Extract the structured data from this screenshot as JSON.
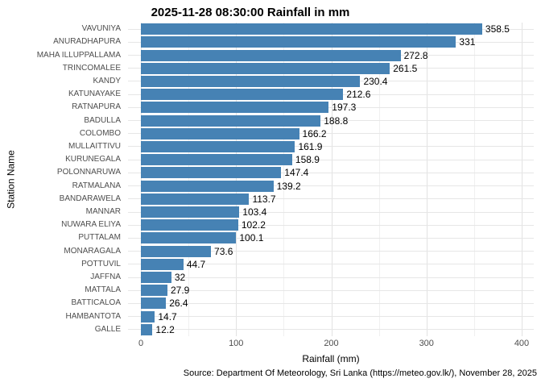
{
  "caption": "Source: Department Of Meteorology, Sri Lanka (https://meteo.gov.lk/), November 28, 2025",
  "colors": {
    "bar": "#4682B4",
    "grid_major": "#e2e2e2",
    "grid_minor": "#f0f0f0",
    "grid_row": "#e6e6e6",
    "axis_text": "#4d4d4d",
    "text": "#000000",
    "background": "#ffffff"
  },
  "chart_data": {
    "type": "bar",
    "orientation": "horizontal",
    "title": "2025-11-28 08:30:00 Rainfall in mm",
    "xlabel": "Rainfall (mm)",
    "ylabel": "Station Name",
    "xlim": [
      0,
      400
    ],
    "x_major_ticks": [
      0,
      100,
      200,
      300,
      400
    ],
    "x_minor_gridlines": [
      50,
      150,
      250,
      350
    ],
    "grid": true,
    "legend": false,
    "categories": [
      "VAVUNIYA",
      "ANURADHAPURA",
      "MAHA ILLUPPALLAMA",
      "TRINCOMALEE",
      "KANDY",
      "KATUNAYAKE",
      "RATNAPURA",
      "BADULLA",
      "COLOMBO",
      "MULLAITTIVU",
      "KURUNEGALA",
      "POLONNARUWA",
      "RATMALANA",
      "BANDARAWELA",
      "MANNAR",
      "NUWARA ELIYA",
      "PUTTALAM",
      "MONARAGALA",
      "POTTUVIL",
      "JAFFNA",
      "MATTALA",
      "BATTICALOA",
      "HAMBANTOTA",
      "GALLE"
    ],
    "values": [
      358.5,
      331,
      272.8,
      261.5,
      230.4,
      212.6,
      197.3,
      188.8,
      166.2,
      161.9,
      158.9,
      147.4,
      139.2,
      113.7,
      103.4,
      102.2,
      100.1,
      73.6,
      44.7,
      32,
      27.9,
      26.4,
      14.7,
      12.2
    ],
    "value_labels": [
      "358.5",
      "331",
      "272.8",
      "261.5",
      "230.4",
      "212.6",
      "197.3",
      "188.8",
      "166.2",
      "161.9",
      "158.9",
      "147.4",
      "139.2",
      "113.7",
      "103.4",
      "102.2",
      "100.1",
      "73.6",
      "44.7",
      "32",
      "27.9",
      "26.4",
      "14.7",
      "12.2"
    ]
  }
}
